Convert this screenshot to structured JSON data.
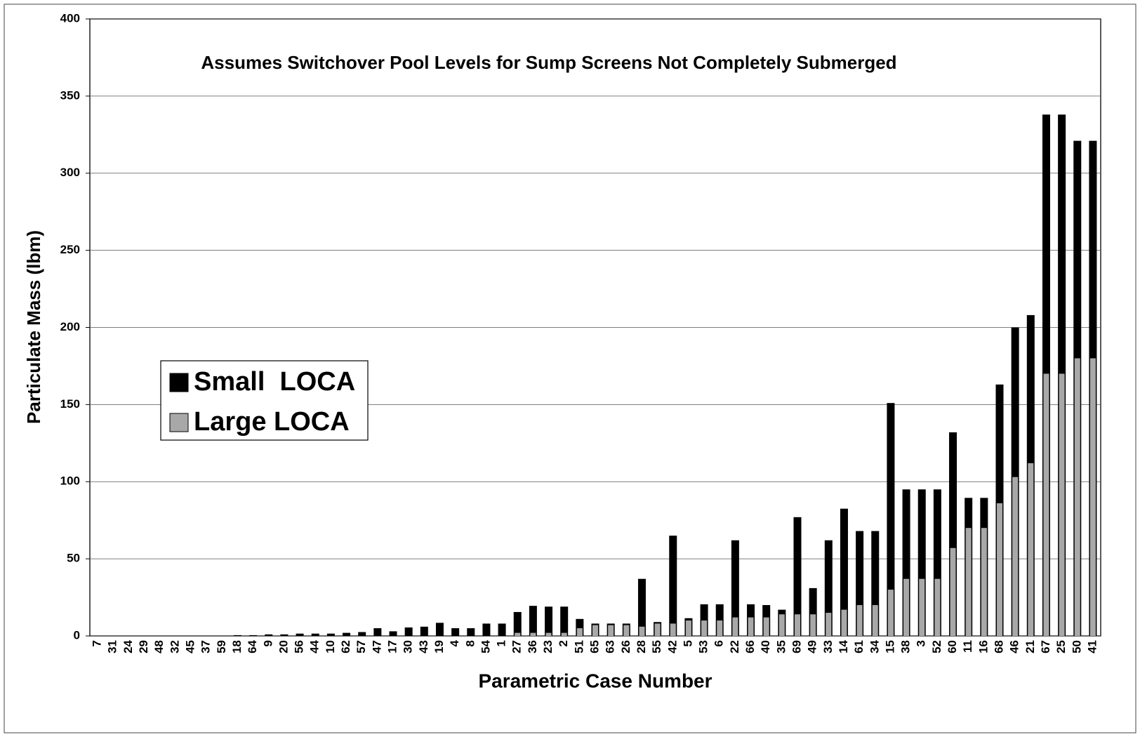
{
  "chart_data": {
    "type": "bar",
    "title": "Assumes Switchover Pool Levels for Sump Screens Not Completely Submerged",
    "x_label": "Parametric Case Number",
    "y_label": "Particulate Mass (lbm)",
    "categories": [
      "7",
      "31",
      "24",
      "29",
      "48",
      "32",
      "45",
      "37",
      "59",
      "18",
      "64",
      "9",
      "20",
      "56",
      "44",
      "10",
      "62",
      "57",
      "47",
      "17",
      "30",
      "43",
      "19",
      "4",
      "8",
      "54",
      "1",
      "27",
      "36",
      "23",
      "2",
      "51",
      "65",
      "63",
      "26",
      "28",
      "55",
      "42",
      "5",
      "53",
      "6",
      "22",
      "66",
      "40",
      "35",
      "69",
      "49",
      "33",
      "14",
      "61",
      "34",
      "15",
      "38",
      "3",
      "52",
      "60",
      "11",
      "16",
      "68",
      "46",
      "21",
      "67",
      "25",
      "50",
      "41"
    ],
    "series": [
      {
        "name": "Small  LOCA",
        "color": "#000000",
        "values": [
          0,
          0,
          0,
          0,
          0,
          0,
          0,
          0,
          0,
          0.5,
          0.5,
          1,
          1,
          1.5,
          1.5,
          1.5,
          2,
          2.5,
          5,
          3,
          5.5,
          6,
          8.5,
          5,
          5,
          8,
          8,
          15.5,
          19.5,
          19,
          19,
          11,
          8,
          8,
          8,
          37,
          9,
          65,
          11.5,
          20.5,
          20.5,
          62,
          20.5,
          20,
          17,
          77,
          31,
          62,
          82.5,
          68,
          68,
          151,
          95,
          95,
          95,
          132,
          89.5,
          89.5,
          163,
          200,
          208,
          338,
          338,
          321,
          321
        ]
      },
      {
        "name": "Large LOCA",
        "color": "#a8a8a8",
        "values": [
          0,
          0,
          0,
          0,
          0,
          0,
          0,
          0,
          0,
          0,
          0,
          0,
          0,
          0,
          0,
          0,
          0,
          0,
          0,
          0,
          0,
          0,
          0,
          0,
          0,
          0,
          0,
          2,
          2,
          2,
          2,
          5,
          7,
          7,
          7,
          6,
          8,
          8,
          10,
          10,
          10,
          12,
          12,
          12,
          14,
          14,
          14,
          15,
          17,
          20,
          20,
          30,
          37,
          37,
          37,
          57,
          70,
          70,
          86,
          103,
          112,
          170,
          170,
          180,
          180
        ]
      }
    ],
    "ylim": [
      0,
      400
    ],
    "yticks": [
      0,
      50,
      100,
      150,
      200,
      250,
      300,
      350,
      400
    ],
    "grid": true,
    "legend": "left"
  }
}
